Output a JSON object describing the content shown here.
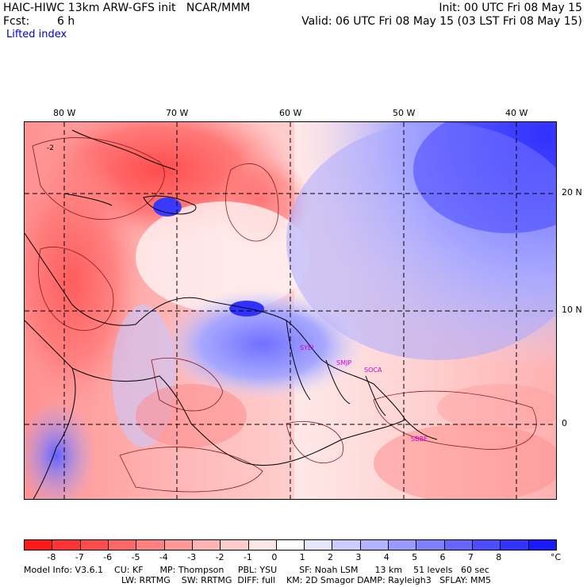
{
  "header": {
    "model_title": "HAIC-HIWC 13km ARW-GFS init   NCAR/MMM",
    "init": "Init: 00 UTC Fri 08 May 15",
    "fcst_label": "Fcst:",
    "fcst_value": "6 h",
    "valid": "Valid: 06 UTC Fri 08 May 15 (03 LST Fri 08 May 15)",
    "field_name": "Lifted index"
  },
  "map": {
    "lon_labels": [
      "80 W",
      "70 W",
      "60 W",
      "50 W",
      "40 W"
    ],
    "lat_labels": [
      "20 N",
      "10 N",
      "0"
    ],
    "place_labels": [
      "SYEI",
      "SMJP",
      "SOCA",
      "SBBE"
    ],
    "contour_label": "-2"
  },
  "colorbar": {
    "colors": [
      "#ff1a1a",
      "#ff3333",
      "#ff4d4d",
      "#ff6666",
      "#ff8080",
      "#ff9999",
      "#ffb3b3",
      "#ffcccc",
      "#ffe6e6",
      "#ffffff",
      "#e6e6ff",
      "#ccccff",
      "#b3b3ff",
      "#9999ff",
      "#8080ff",
      "#6666ff",
      "#4d4dff",
      "#3333ff",
      "#1a1aff"
    ],
    "labels": [
      "-8",
      "-7",
      "-6",
      "-5",
      "-4",
      "-3",
      "-2",
      "-1",
      "0",
      "1",
      "2",
      "3",
      "4",
      "5",
      "6",
      "7",
      "8"
    ],
    "unit": "°C"
  },
  "footer": {
    "line1": "Model Info: V3.6.1    CU: KF      MP: Thompson     PBL: YSU        SF: Noah LSM      13 km    51 levels   60 sec",
    "line2": "LW: RRTMG    SW: RRTMG  DIFF: full    KM: 2D Smagor DAMP: Rayleigh3   SFLAY: MM5"
  }
}
